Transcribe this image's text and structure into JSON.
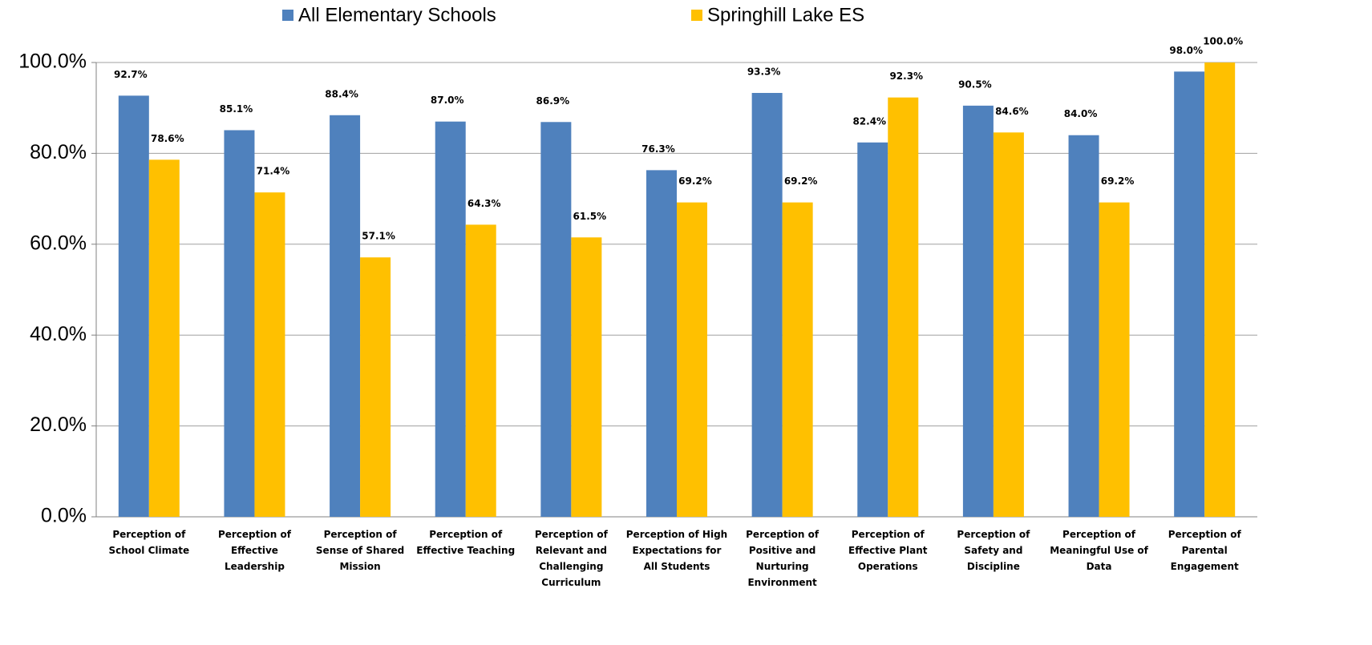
{
  "chart_data": {
    "type": "bar",
    "categories": [
      "Perception of School Climate",
      "Perception of Effective Leadership",
      "Perception of Sense of Shared Mission",
      "Perception of Effective Teaching",
      "Perception of Relevant and Challenging Curriculum",
      "Perception of High Expectations for All Students",
      "Perception of Positive and Nurturing Environment",
      "Perception of Effective Plant Operations",
      "Perception of Safety and Discipline",
      "Perception of Meaningful Use of Data",
      "Perception of Parental Engagement"
    ],
    "series": [
      {
        "name": "All Elementary Schools",
        "color": "#4f81bd",
        "values": [
          92.7,
          85.1,
          88.4,
          87.0,
          86.9,
          76.3,
          93.3,
          82.4,
          90.5,
          84.0,
          98.0
        ],
        "value_labels": [
          "92.7%",
          "85.1%",
          "88.4%",
          "87.0%",
          "86.9%",
          "76.3%",
          "93.3%",
          "82.4%",
          "90.5%",
          "84.0%",
          "98.0%"
        ]
      },
      {
        "name": "Springhill Lake ES",
        "color": "#ffc000",
        "values": [
          78.6,
          71.4,
          57.1,
          64.3,
          61.5,
          69.2,
          69.2,
          92.3,
          84.6,
          69.2,
          100.0
        ],
        "value_labels": [
          "78.6%",
          "71.4%",
          "57.1%",
          "64.3%",
          "61.5%",
          "69.2%",
          "69.2%",
          "92.3%",
          "84.6%",
          "69.2%",
          "100.0%"
        ]
      }
    ],
    "ylim": [
      0,
      100
    ],
    "yticks": [
      {
        "value": 0,
        "label": "0.0%"
      },
      {
        "value": 20,
        "label": "20.0%"
      },
      {
        "value": 40,
        "label": "40.0%"
      },
      {
        "value": 60,
        "label": "60.0%"
      },
      {
        "value": 80,
        "label": "80.0%"
      },
      {
        "value": 100,
        "label": "100.0%"
      }
    ],
    "grid": true,
    "legend": "top"
  }
}
